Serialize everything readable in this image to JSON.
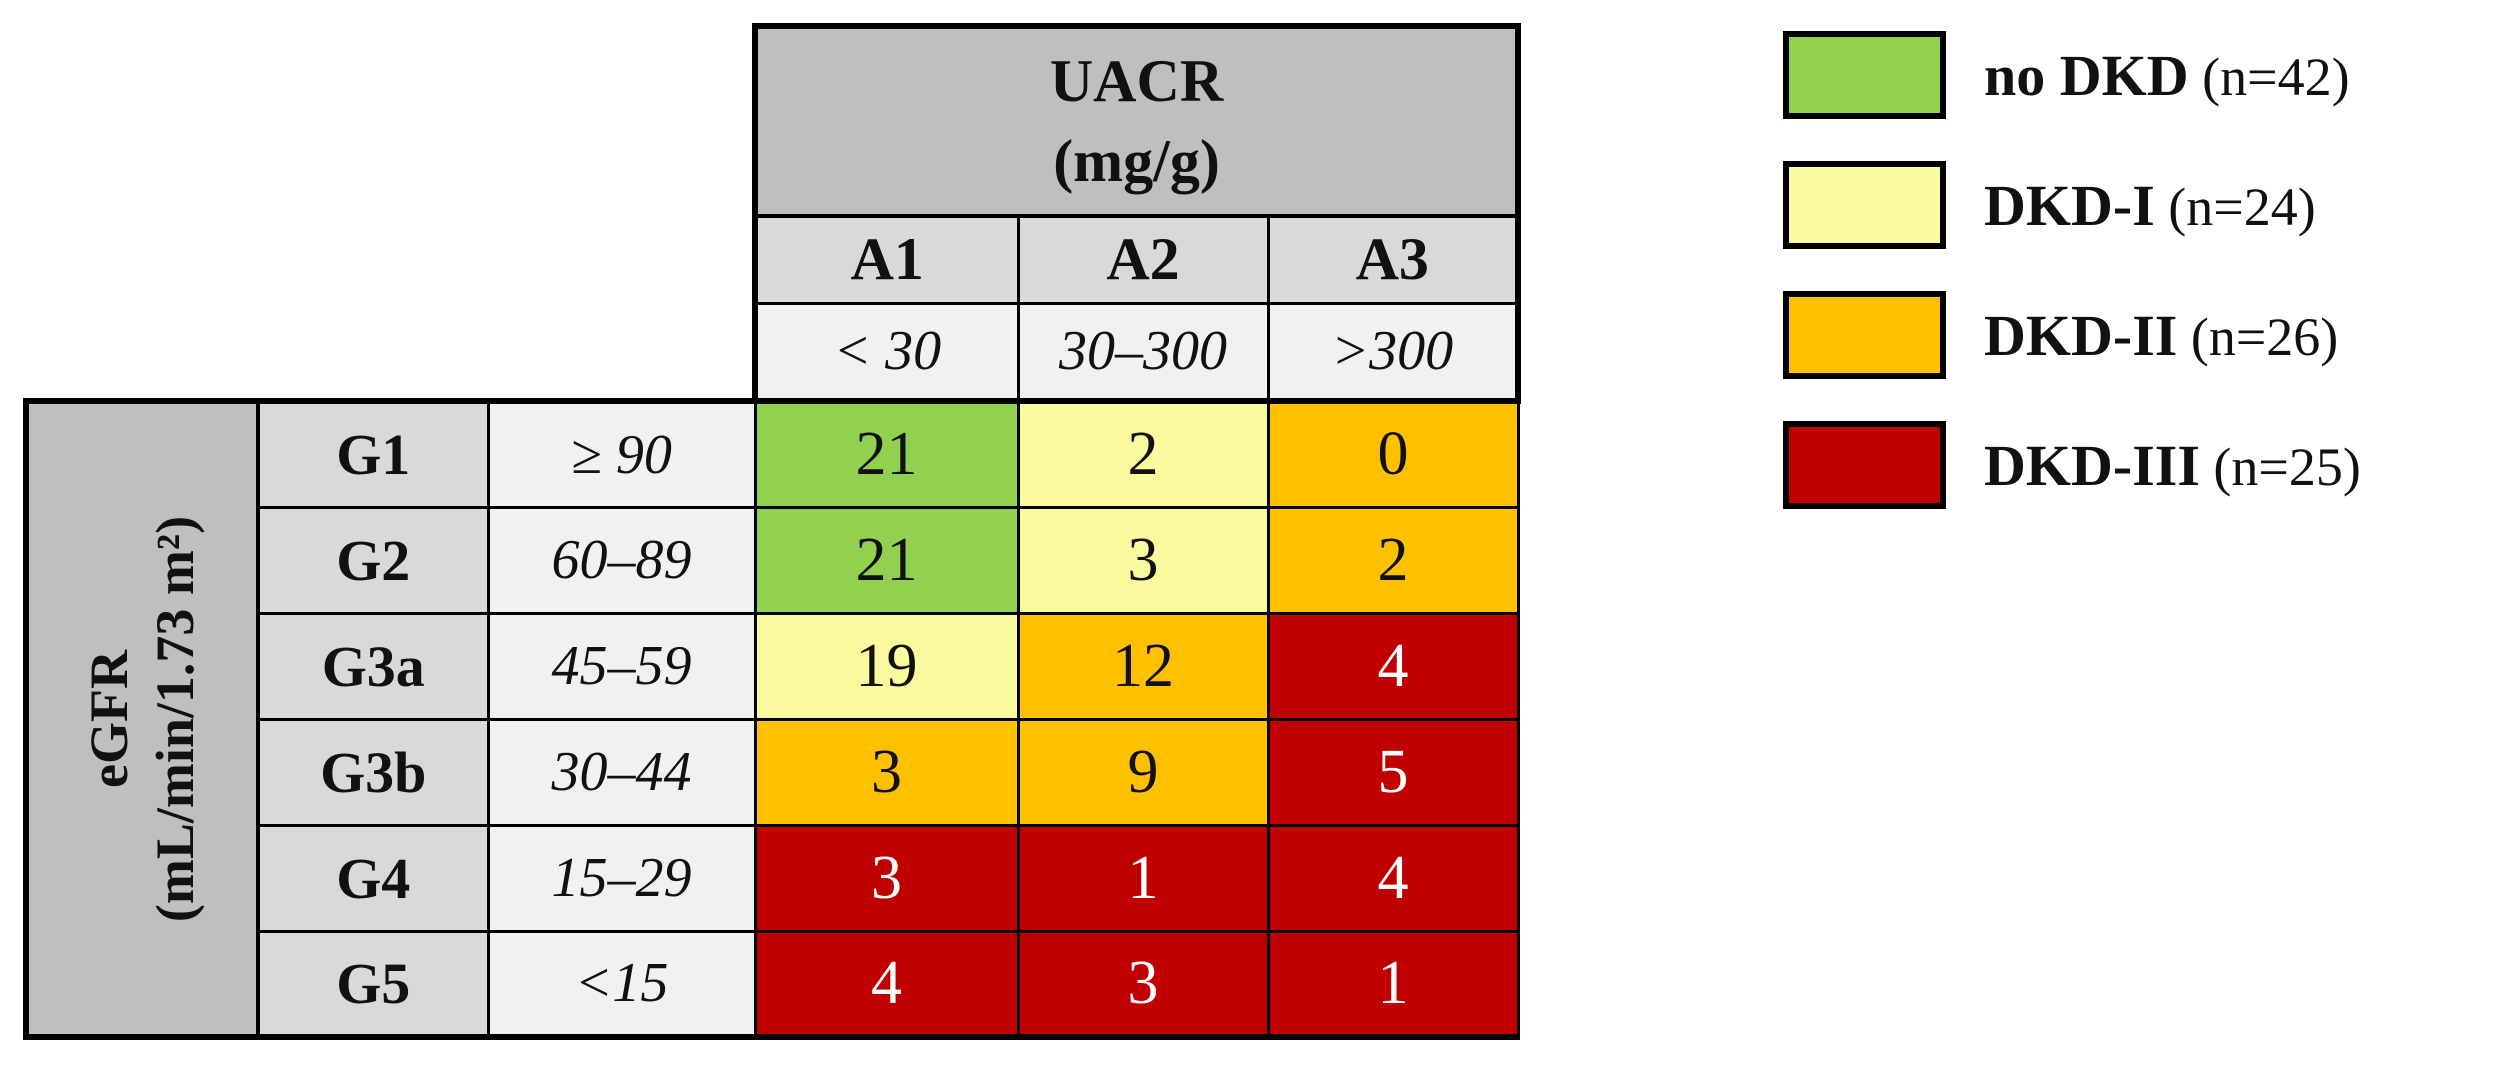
{
  "chart_data": {
    "type": "heatmap",
    "title": "",
    "x_axis": {
      "label": "UACR (mg/g)",
      "categories": [
        "A1",
        "A2",
        "A3"
      ],
      "category_ranges": [
        "< 30",
        "30–300",
        ">300"
      ]
    },
    "y_axis": {
      "label": "eGFR (mL/min/1.73 m²)",
      "categories": [
        "G1",
        "G2",
        "G3a",
        "G3b",
        "G4",
        "G5"
      ],
      "category_ranges": [
        "≥ 90",
        "60–89",
        "45–59",
        "30–44",
        "15–29",
        "<15"
      ]
    },
    "values": [
      [
        21,
        2,
        0
      ],
      [
        21,
        3,
        2
      ],
      [
        19,
        12,
        4
      ],
      [
        3,
        9,
        5
      ],
      [
        3,
        1,
        4
      ],
      [
        4,
        3,
        1
      ]
    ],
    "cell_categories": [
      [
        "no DKD",
        "DKD-I",
        "DKD-II"
      ],
      [
        "no DKD",
        "DKD-I",
        "DKD-II"
      ],
      [
        "DKD-I",
        "DKD-II",
        "DKD-III"
      ],
      [
        "DKD-II",
        "DKD-II",
        "DKD-III"
      ],
      [
        "DKD-III",
        "DKD-III",
        "DKD-III"
      ],
      [
        "DKD-III",
        "DKD-III",
        "DKD-III"
      ]
    ],
    "legend_position": "top-right",
    "legend": [
      {
        "label": "no DKD",
        "count_label": "(n=42)",
        "n": 42,
        "color": "#92D050"
      },
      {
        "label": "DKD-I",
        "count_label": "(n=24)",
        "n": 24,
        "color": "#FAFA9E"
      },
      {
        "label": "DKD-II",
        "count_label": "(n=26)",
        "n": 26,
        "color": "#FFC000"
      },
      {
        "label": "DKD-III",
        "count_label": "(n=25)",
        "n": 25,
        "color": "#C00000"
      }
    ]
  },
  "matrix": {
    "uacr_title": "UACR",
    "uacr_unit": "(mg/g)",
    "egfr_title": "eGFR",
    "egfr_unit": "(mL/min/1.73 m²)",
    "col_categories": [
      "A1",
      "A2",
      "A3"
    ],
    "col_ranges": [
      "< 30",
      "30–300",
      ">300"
    ],
    "rows": [
      {
        "stage": "G1",
        "range": "≥ 90",
        "cells": [
          {
            "value": "21",
            "group": "green"
          },
          {
            "value": "2",
            "group": "yellow"
          },
          {
            "value": "0",
            "group": "orange"
          }
        ]
      },
      {
        "stage": "G2",
        "range": "60–89",
        "cells": [
          {
            "value": "21",
            "group": "green"
          },
          {
            "value": "3",
            "group": "yellow"
          },
          {
            "value": "2",
            "group": "orange"
          }
        ]
      },
      {
        "stage": "G3a",
        "range": "45–59",
        "cells": [
          {
            "value": "19",
            "group": "yellow"
          },
          {
            "value": "12",
            "group": "orange"
          },
          {
            "value": "4",
            "group": "red"
          }
        ]
      },
      {
        "stage": "G3b",
        "range": "30–44",
        "cells": [
          {
            "value": "3",
            "group": "orange"
          },
          {
            "value": "9",
            "group": "orange"
          },
          {
            "value": "5",
            "group": "red"
          }
        ]
      },
      {
        "stage": "G4",
        "range": "15–29",
        "cells": [
          {
            "value": "3",
            "group": "red"
          },
          {
            "value": "1",
            "group": "red"
          },
          {
            "value": "4",
            "group": "red"
          }
        ]
      },
      {
        "stage": "G5",
        "range": "<15",
        "cells": [
          {
            "value": "4",
            "group": "red"
          },
          {
            "value": "3",
            "group": "red"
          },
          {
            "value": "1",
            "group": "red"
          }
        ]
      }
    ]
  },
  "legend": {
    "items": [
      {
        "label": "no DKD",
        "count": "(n=42)",
        "color": "#92D050",
        "group": "green"
      },
      {
        "label": "DKD-I",
        "count": "(n=24)",
        "color": "#FAFA9E",
        "group": "yellow"
      },
      {
        "label": "DKD-II",
        "count": "(n=26)",
        "color": "#FFC000",
        "group": "orange"
      },
      {
        "label": "DKD-III",
        "count": "(n=25)",
        "color": "#C00000",
        "group": "red"
      }
    ]
  },
  "colors": {
    "green": "#92D050",
    "yellow": "#FAFA9E",
    "orange": "#FFC000",
    "red": "#C00000",
    "header-gray": "#BFBFBF",
    "label-gray": "#D9D9D9",
    "range-gray": "#F1F1F1",
    "line": "#000000",
    "text": "#111111",
    "text-inverse": "#FFFFFF"
  }
}
